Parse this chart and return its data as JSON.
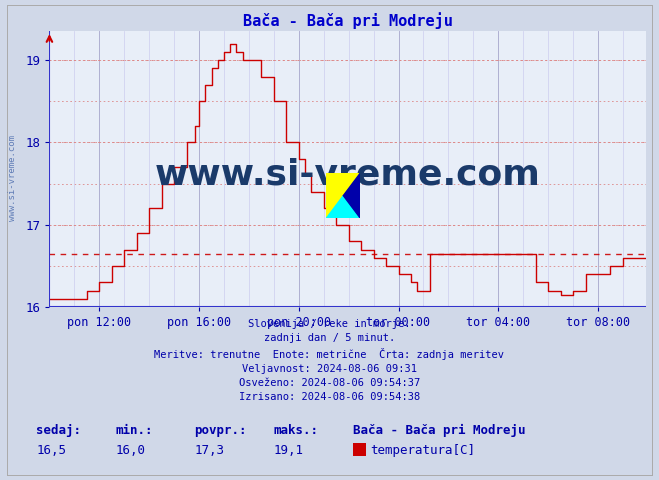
{
  "title": "Bača - Bača pri Modreju",
  "title_color": "#0000cc",
  "bg_color": "#d0d8e8",
  "plot_bg_color": "#e8eef8",
  "line_color": "#cc0000",
  "avg_value": 16.65,
  "ylim": [
    16.0,
    19.35
  ],
  "yticks": [
    16,
    17,
    18,
    19
  ],
  "xlabel_color": "#0000aa",
  "xtick_labels": [
    "pon 12:00",
    "pon 16:00",
    "pon 20:00",
    "tor 00:00",
    "tor 04:00",
    "tor 08:00"
  ],
  "watermark": "www.si-vreme.com",
  "watermark_color": "#1a3a6a",
  "footer_lines": [
    "Slovenija / reke in morje.",
    "zadnji dan / 5 minut.",
    "Meritve: trenutne  Enote: metrične  Črta: zadnja meritev",
    "Veljavnost: 2024-08-06 09:31",
    "Osveženo: 2024-08-06 09:54:37",
    "Izrisano: 2024-08-06 09:54:38"
  ],
  "stats_labels": [
    "sedaj:",
    "min.:",
    "povpr.:",
    "maks.:"
  ],
  "stats_values": [
    "16,5",
    "16,0",
    "17,3",
    "19,1"
  ],
  "legend_station": "Bača - Bača pri Modreju",
  "legend_item": "temperatura[C]",
  "legend_color": "#cc0000",
  "sidebar_text": "www.si-vreme.com",
  "sidebar_color": "#4466aa"
}
